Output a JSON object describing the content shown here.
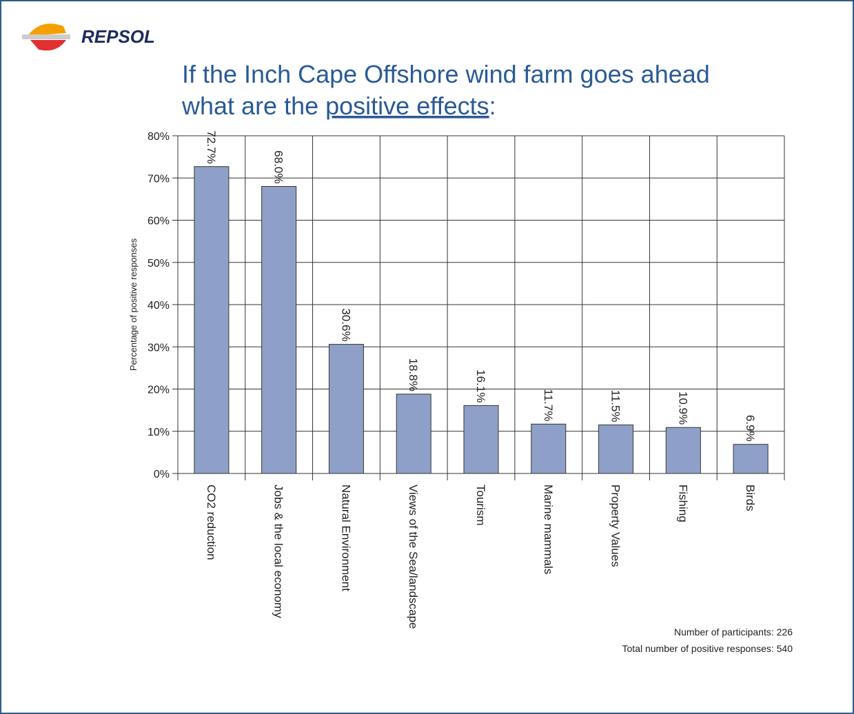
{
  "brand": "REPSOL",
  "chart_data": {
    "type": "bar",
    "title": [
      "If the Inch Cape Offshore wind farm goes ahead",
      "what are the ",
      "positive effects",
      ":"
    ],
    "y_label": "Percentage of positive responses",
    "categories": [
      "CO2 reduction",
      "Jobs & the local economy",
      "Natural Environment",
      "Views of the Sea/landscape",
      "Tourism",
      "Marine mammals",
      "Property Values",
      "Fishing",
      "Birds"
    ],
    "values": [
      72.7,
      68.0,
      30.6,
      18.8,
      16.1,
      11.7,
      11.5,
      10.9,
      6.9
    ],
    "value_labels": [
      "72.7%",
      "68.0%",
      "30.6%",
      "18.8%",
      "16.1%",
      "11.7%",
      "11.5%",
      "10.9%",
      "6.9%"
    ],
    "color": "#8fa0c8",
    "ylim": [
      0,
      80
    ],
    "yticks": [
      {
        "value": 0,
        "label": "0%"
      },
      {
        "value": 10,
        "label": "10%"
      },
      {
        "value": 20,
        "label": "20%"
      },
      {
        "value": 30,
        "label": "30%"
      },
      {
        "value": 40,
        "label": "40%"
      },
      {
        "value": 50,
        "label": "50%"
      },
      {
        "value": 60,
        "label": "60%"
      },
      {
        "value": 70,
        "label": "70%"
      },
      {
        "value": 80,
        "label": "80%"
      }
    ],
    "grid": true,
    "notes": [
      "Number of participants: 226",
      "Total number of positive responses: 540"
    ]
  }
}
